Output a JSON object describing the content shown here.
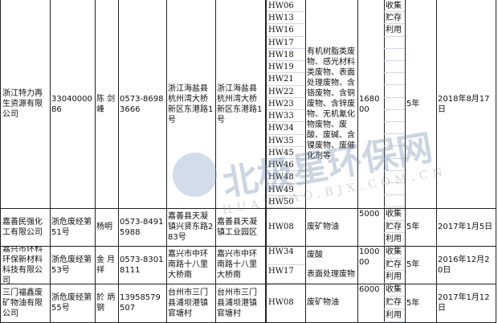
{
  "rows": [
    {
      "company": "浙江特力再生资源有限公司",
      "license": "3304000086",
      "contact": "陈 剑峰",
      "phone": "0573-86983666",
      "reg_addr": "浙江海盐县杭州湾大桥新区东港路1号",
      "op_addr": "浙江海盐县杭州湾大桥新区东港路1号",
      "codes": [
        "HW06",
        "HW13",
        "HW16",
        "HW17",
        "HW18",
        "HW19",
        "HW21",
        "HW22",
        "HW23",
        "HW33",
        "HW34",
        "HW35",
        "HW45",
        "HW46",
        "HW48",
        "HW49",
        "HW50"
      ],
      "waste": "有机树脂类废物、感光材料类废物、表面处理废物、含铬废物、含铜废物、含锌废物、无机氰化物废物、废酸、废碱、含镍废物、废催化剂等",
      "capacity": "168000",
      "mode": [
        "收集",
        "贮存",
        "利用"
      ],
      "term": "5年",
      "date": "2018年8月17日"
    },
    {
      "company": "嘉善民强化工有限公司",
      "license": "浙危废经第51号",
      "contact": "杨明",
      "phone": "0573-84915988",
      "reg_addr": "嘉善县天凝镇兴贤东路283号",
      "op_addr": "嘉善县天凝镇工业园区",
      "codes": [
        "HW08"
      ],
      "waste": [
        "废矿物油"
      ],
      "capacity": "5000",
      "mode": [
        "收集",
        "贮存",
        "利用"
      ],
      "term": "5年",
      "date": "2017年1月5日"
    },
    {
      "company": "嘉兴市环科环保新材料科技有限公司",
      "license": "浙危废经第53号",
      "contact": "金 月祥",
      "phone": "0573-83018111",
      "reg_addr": "嘉兴市中环南路十八里大桥南",
      "op_addr": "嘉兴市中环南路十八里大桥南",
      "codes": [
        "HW34",
        "HW17"
      ],
      "waste": [
        "废酸",
        "表面处理废物"
      ],
      "capacity": "100000",
      "mode": [
        "收集",
        "贮存",
        "利用"
      ],
      "term": "5年",
      "date": "2016年12月20日"
    },
    {
      "company": "三门福鑫废矿物油有限公司",
      "license": "浙危废经第55号",
      "contact": "於 炳钢",
      "phone": "13958579507",
      "reg_addr": "台州市三门县浦坝港镇官塘村",
      "op_addr": "台州市三门县浦坝港镇官塘村",
      "codes": [
        "HW08"
      ],
      "waste": [
        "废矿物油"
      ],
      "capacity": "6000",
      "mode": [
        "收集",
        "贮存",
        "利用"
      ],
      "term": "5年",
      "date": "2017年1月12日"
    }
  ],
  "watermark": {
    "cn": "北极星环保网",
    "en": "HUANBAO.BJX.COM.CN",
    "colors": [
      "#9fb3cc",
      "#7fbf7f"
    ]
  }
}
